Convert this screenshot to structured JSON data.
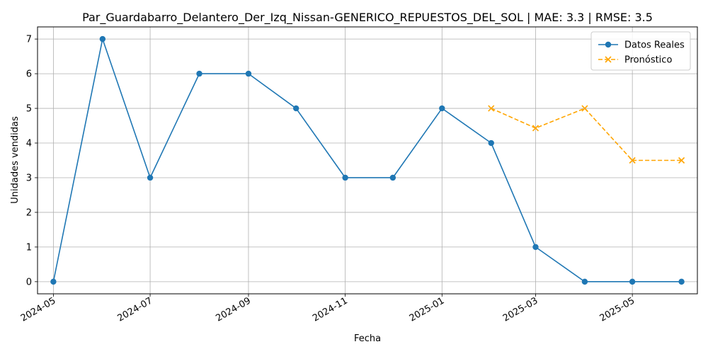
{
  "chart_data": {
    "type": "line",
    "title": "Par_Guardabarro_Delantero_Der_Izq_Nissan-GENERICO_REPUESTOS_DEL_SOL | MAE: 3.3 | RMSE: 3.5",
    "xlabel": "Fecha",
    "ylabel": "Unidades vendidas",
    "x_ticks": [
      "2024-05",
      "2024-07",
      "2024-09",
      "2024-11",
      "2025-01",
      "2025-03",
      "2025-05"
    ],
    "y_ticks": [
      0,
      1,
      2,
      3,
      4,
      5,
      6,
      7
    ],
    "xlim": [
      "2024-04-21",
      "2025-06-11"
    ],
    "ylim": [
      -0.35,
      7.35
    ],
    "grid": true,
    "legend_position": "top-right",
    "series": [
      {
        "name": "Datos Reales",
        "color": "#1f77b4",
        "marker": "circle",
        "linestyle": "solid",
        "points": [
          {
            "x": "2024-05-01",
            "y": 0
          },
          {
            "x": "2024-06-01",
            "y": 7
          },
          {
            "x": "2024-07-01",
            "y": 3
          },
          {
            "x": "2024-08-01",
            "y": 6
          },
          {
            "x": "2024-09-01",
            "y": 6
          },
          {
            "x": "2024-10-01",
            "y": 5
          },
          {
            "x": "2024-11-01",
            "y": 3
          },
          {
            "x": "2024-12-01",
            "y": 3
          },
          {
            "x": "2025-01-01",
            "y": 5
          },
          {
            "x": "2025-02-01",
            "y": 4
          },
          {
            "x": "2025-03-01",
            "y": 1
          },
          {
            "x": "2025-04-01",
            "y": 0
          },
          {
            "x": "2025-05-01",
            "y": 0
          },
          {
            "x": "2025-06-01",
            "y": 0
          }
        ]
      },
      {
        "name": "Pronóstico",
        "color": "#ffa500",
        "marker": "x",
        "linestyle": "dashed",
        "points": [
          {
            "x": "2025-02-01",
            "y": 5
          },
          {
            "x": "2025-03-01",
            "y": 4.43
          },
          {
            "x": "2025-04-01",
            "y": 5
          },
          {
            "x": "2025-05-01",
            "y": 3.5
          },
          {
            "x": "2025-06-01",
            "y": 3.5
          }
        ]
      }
    ]
  }
}
